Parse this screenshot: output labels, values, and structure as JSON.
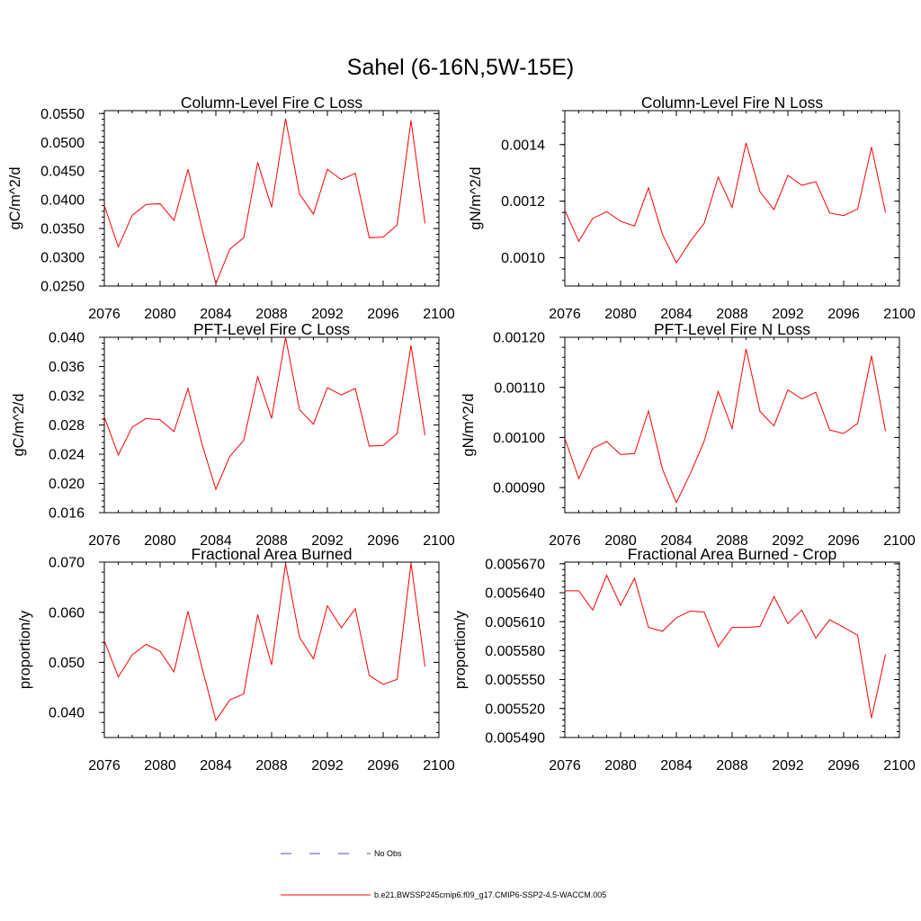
{
  "title": "Sahel (6-16N,5W-15E)",
  "colors": {
    "series": "#ff0000",
    "no_obs": "#4d4dcc",
    "axes": "#000000"
  },
  "legend": [
    {
      "label": "No Obs",
      "style": "dashed",
      "color": "#4d4dcc"
    },
    {
      "label": "b.e21.BWSSP245cmip6.f09_g17.CMIP6-SSP2-4.5-WACCM.005",
      "style": "solid",
      "color": "#ff0000"
    }
  ],
  "chart_data": [
    {
      "type": "line",
      "title": "Column-Level Fire C Loss",
      "xlabel": "",
      "ylabel": "gC/m^2/d",
      "xlim": [
        2076,
        2100
      ],
      "ylim": [
        0.025,
        0.0555
      ],
      "xticks": [
        2076,
        2080,
        2084,
        2088,
        2092,
        2096,
        2100
      ],
      "xtick_labels": [
        "2076",
        "2080",
        "2084",
        "2088",
        "2092",
        "2096",
        "2100"
      ],
      "yticks": [
        0.025,
        0.03,
        0.035,
        0.04,
        0.045,
        0.05,
        0.055
      ],
      "ytick_labels": [
        "0.0250",
        "0.0300",
        "0.0350",
        "0.0400",
        "0.0450",
        "0.0500",
        "0.0550"
      ],
      "x": [
        2076,
        2077,
        2078,
        2079,
        2080,
        2081,
        2082,
        2083,
        2084,
        2085,
        2086,
        2087,
        2088,
        2089,
        2090,
        2091,
        2092,
        2093,
        2094,
        2095,
        2096,
        2097,
        2098,
        2099
      ],
      "series": [
        {
          "name": "b.e21.BWSSP245cmip6.f09_g17.CMIP6-SSP2-4.5-WACCM.005",
          "values": [
            0.039,
            0.0318,
            0.0373,
            0.0392,
            0.0393,
            0.0364,
            0.0453,
            0.035,
            0.0254,
            0.0314,
            0.0334,
            0.0465,
            0.0387,
            0.0541,
            0.041,
            0.0375,
            0.0453,
            0.0435,
            0.0446,
            0.0334,
            0.0335,
            0.0356,
            0.0538,
            0.0359
          ]
        }
      ]
    },
    {
      "type": "line",
      "title": "Column-Level Fire N Loss",
      "xlabel": "",
      "ylabel": "gN/m^2/d",
      "xlim": [
        2076,
        2100
      ],
      "ylim": [
        0.0009,
        0.00152
      ],
      "xticks": [
        2076,
        2080,
        2084,
        2088,
        2092,
        2096,
        2100
      ],
      "xtick_labels": [
        "2076",
        "2080",
        "2084",
        "2088",
        "2092",
        "2096",
        "2100"
      ],
      "yticks": [
        0.001,
        0.0012,
        0.0014
      ],
      "ytick_labels": [
        "0.0010",
        "0.0012",
        "0.0014"
      ],
      "x": [
        2076,
        2077,
        2078,
        2079,
        2080,
        2081,
        2082,
        2083,
        2084,
        2085,
        2086,
        2087,
        2088,
        2089,
        2090,
        2091,
        2092,
        2093,
        2094,
        2095,
        2096,
        2097,
        2098,
        2099
      ],
      "series": [
        {
          "name": "b.e21.BWSSP245cmip6.f09_g17.CMIP6-SSP2-4.5-WACCM.005",
          "values": [
            0.001168,
            0.001058,
            0.001139,
            0.001163,
            0.001129,
            0.001112,
            0.001247,
            0.001083,
            0.000982,
            0.001058,
            0.001122,
            0.001285,
            0.001178,
            0.001406,
            0.001233,
            0.00117,
            0.001291,
            0.001256,
            0.001269,
            0.001158,
            0.001149,
            0.001172,
            0.001391,
            0.00116
          ]
        }
      ]
    },
    {
      "type": "line",
      "title": "PFT-Level Fire C Loss",
      "xlabel": "",
      "ylabel": "gC/m^2/d",
      "xlim": [
        2076,
        2100
      ],
      "ylim": [
        0.016,
        0.04
      ],
      "xticks": [
        2076,
        2080,
        2084,
        2088,
        2092,
        2096,
        2100
      ],
      "xtick_labels": [
        "2076",
        "2080",
        "2084",
        "2088",
        "2092",
        "2096",
        "2100"
      ],
      "yticks": [
        0.016,
        0.02,
        0.024,
        0.028,
        0.032,
        0.036,
        0.04
      ],
      "ytick_labels": [
        "0.016",
        "0.020",
        "0.024",
        "0.028",
        "0.032",
        "0.036",
        "0.040"
      ],
      "x": [
        2076,
        2077,
        2078,
        2079,
        2080,
        2081,
        2082,
        2083,
        2084,
        2085,
        2086,
        2087,
        2088,
        2089,
        2090,
        2091,
        2092,
        2093,
        2094,
        2095,
        2096,
        2097,
        2098,
        2099
      ],
      "series": [
        {
          "name": "b.e21.BWSSP245cmip6.f09_g17.CMIP6-SSP2-4.5-WACCM.005",
          "values": [
            0.0291,
            0.0239,
            0.0277,
            0.0289,
            0.0287,
            0.0271,
            0.033,
            0.0254,
            0.0192,
            0.0237,
            0.0259,
            0.0346,
            0.0289,
            0.04,
            0.0301,
            0.0281,
            0.0331,
            0.0321,
            0.033,
            0.0251,
            0.0252,
            0.0268,
            0.0389,
            0.0266
          ]
        }
      ]
    },
    {
      "type": "line",
      "title": "PFT-Level Fire N Loss",
      "xlabel": "",
      "ylabel": "gN/m^2/d",
      "xlim": [
        2076,
        2100
      ],
      "ylim": [
        0.00085,
        0.0012
      ],
      "xticks": [
        2076,
        2080,
        2084,
        2088,
        2092,
        2096,
        2100
      ],
      "xtick_labels": [
        "2076",
        "2080",
        "2084",
        "2088",
        "2092",
        "2096",
        "2100"
      ],
      "yticks": [
        0.0009,
        0.001,
        0.0011,
        0.0012
      ],
      "ytick_labels": [
        "0.00090",
        "0.00100",
        "0.00110",
        "0.00120"
      ],
      "x": [
        2076,
        2077,
        2078,
        2079,
        2080,
        2081,
        2082,
        2083,
        2084,
        2085,
        2086,
        2087,
        2088,
        2089,
        2090,
        2091,
        2092,
        2093,
        2094,
        2095,
        2096,
        2097,
        2098,
        2099
      ],
      "series": [
        {
          "name": "b.e21.BWSSP245cmip6.f09_g17.CMIP6-SSP2-4.5-WACCM.005",
          "values": [
            0.000998,
            0.000918,
            0.000978,
            0.000992,
            0.000966,
            0.000968,
            0.001053,
            0.000937,
            0.00087,
            0.000928,
            0.000993,
            0.001092,
            0.001018,
            0.001177,
            0.001052,
            0.001023,
            0.001095,
            0.001077,
            0.00109,
            0.001015,
            0.001008,
            0.001028,
            0.001163,
            0.001013
          ]
        }
      ]
    },
    {
      "type": "line",
      "title": "Fractional Area Burned",
      "xlabel": "",
      "ylabel": "proportion/y",
      "xlim": [
        2076,
        2100
      ],
      "ylim": [
        0.035,
        0.07
      ],
      "xticks": [
        2076,
        2080,
        2084,
        2088,
        2092,
        2096,
        2100
      ],
      "xtick_labels": [
        "2076",
        "2080",
        "2084",
        "2088",
        "2092",
        "2096",
        "2100"
      ],
      "yticks": [
        0.04,
        0.05,
        0.06,
        0.07
      ],
      "ytick_labels": [
        "0.040",
        "0.050",
        "0.060",
        "0.070"
      ],
      "x": [
        2076,
        2077,
        2078,
        2079,
        2080,
        2081,
        2082,
        2083,
        2084,
        2085,
        2086,
        2087,
        2088,
        2089,
        2090,
        2091,
        2092,
        2093,
        2094,
        2095,
        2096,
        2097,
        2098,
        2099
      ],
      "series": [
        {
          "name": "b.e21.BWSSP245cmip6.f09_g17.CMIP6-SSP2-4.5-WACCM.005",
          "values": [
            0.0543,
            0.0471,
            0.0515,
            0.0536,
            0.0522,
            0.0481,
            0.0602,
            0.049,
            0.0384,
            0.0425,
            0.0437,
            0.0595,
            0.0495,
            0.0697,
            0.055,
            0.0507,
            0.0613,
            0.0569,
            0.0607,
            0.0474,
            0.0456,
            0.0466,
            0.0698,
            0.0492
          ]
        }
      ]
    },
    {
      "type": "line",
      "title": "Fractional Area Burned - Crop",
      "xlabel": "",
      "ylabel": "proportion/y",
      "xlim": [
        2076,
        2100
      ],
      "ylim": [
        0.0054899,
        0.0056717
      ],
      "xticks": [
        2076,
        2080,
        2084,
        2088,
        2092,
        2096,
        2100
      ],
      "xtick_labels": [
        "2076",
        "2080",
        "2084",
        "2088",
        "2092",
        "2096",
        "2100"
      ],
      "yticks": [
        0.00549,
        0.00552,
        0.00555,
        0.00558,
        0.00561,
        0.00564,
        0.00567
      ],
      "ytick_labels": [
        "0.005490",
        "0.005520",
        "0.005550",
        "0.005580",
        "0.005610",
        "0.005640",
        "0.005670"
      ],
      "x": [
        2076,
        2077,
        2078,
        2079,
        2080,
        2081,
        2082,
        2083,
        2084,
        2085,
        2086,
        2087,
        2088,
        2089,
        2090,
        2091,
        2092,
        2093,
        2094,
        2095,
        2096,
        2097,
        2098,
        2099
      ],
      "series": [
        {
          "name": "b.e21.BWSSP245cmip6.f09_g17.CMIP6-SSP2-4.5-WACCM.005",
          "values": [
            0.005642,
            0.005642,
            0.005622,
            0.005658,
            0.005627,
            0.005655,
            0.005604,
            0.0056,
            0.005614,
            0.005621,
            0.00562,
            0.005584,
            0.005604,
            0.005604,
            0.005605,
            0.005636,
            0.005608,
            0.005622,
            0.005593,
            0.005612,
            0.005604,
            0.005596,
            0.00551,
            0.005576
          ]
        }
      ]
    }
  ]
}
